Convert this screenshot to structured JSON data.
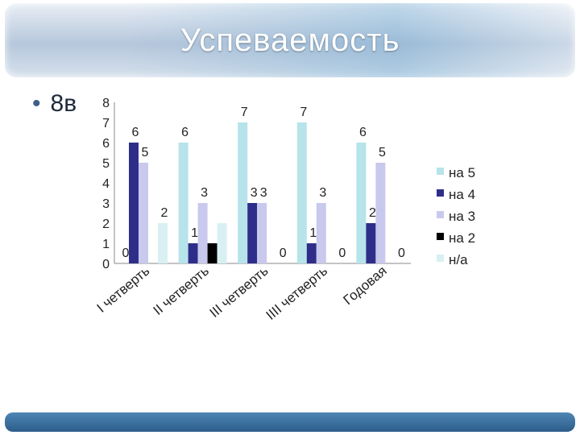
{
  "slide": {
    "title": "Успеваемость",
    "bullet": "8в"
  },
  "colors": {
    "на 5": "#b7e3ea",
    "на 4": "#2e2e8a",
    "на 3": "#c9c9ee",
    "на 2": "#000000",
    "н/а": "#d9f0f3"
  },
  "chart_data": {
    "type": "bar",
    "categories": [
      "I четверть",
      "II четверть",
      "III четверть",
      "IIII четверть",
      "Годовая"
    ],
    "series": [
      {
        "name": "на 5",
        "values": [
          0,
          6,
          7,
          7,
          6
        ]
      },
      {
        "name": "на 4",
        "values": [
          6,
          1,
          3,
          1,
          2
        ]
      },
      {
        "name": "на 3",
        "values": [
          5,
          3,
          3,
          3,
          5
        ]
      },
      {
        "name": "на 2",
        "values": [
          0,
          1,
          0,
          0,
          0
        ]
      },
      {
        "name": "н/а",
        "values": [
          2,
          2,
          0,
          0,
          0
        ]
      }
    ],
    "data_labels": [
      [
        "0",
        "6",
        "5",
        "",
        "2"
      ],
      [
        "6",
        "1",
        "3",
        "",
        ""
      ],
      [
        "7",
        "3",
        "3",
        "",
        "0"
      ],
      [
        "7",
        "1",
        "3",
        "",
        "0"
      ],
      [
        "6",
        "2",
        "5",
        "",
        "0"
      ]
    ],
    "y_ticks": [
      "0",
      "1",
      "2",
      "3",
      "4",
      "5",
      "6",
      "7",
      "8"
    ],
    "ylim": [
      0,
      8
    ],
    "legend_position": "right",
    "grid": false
  }
}
